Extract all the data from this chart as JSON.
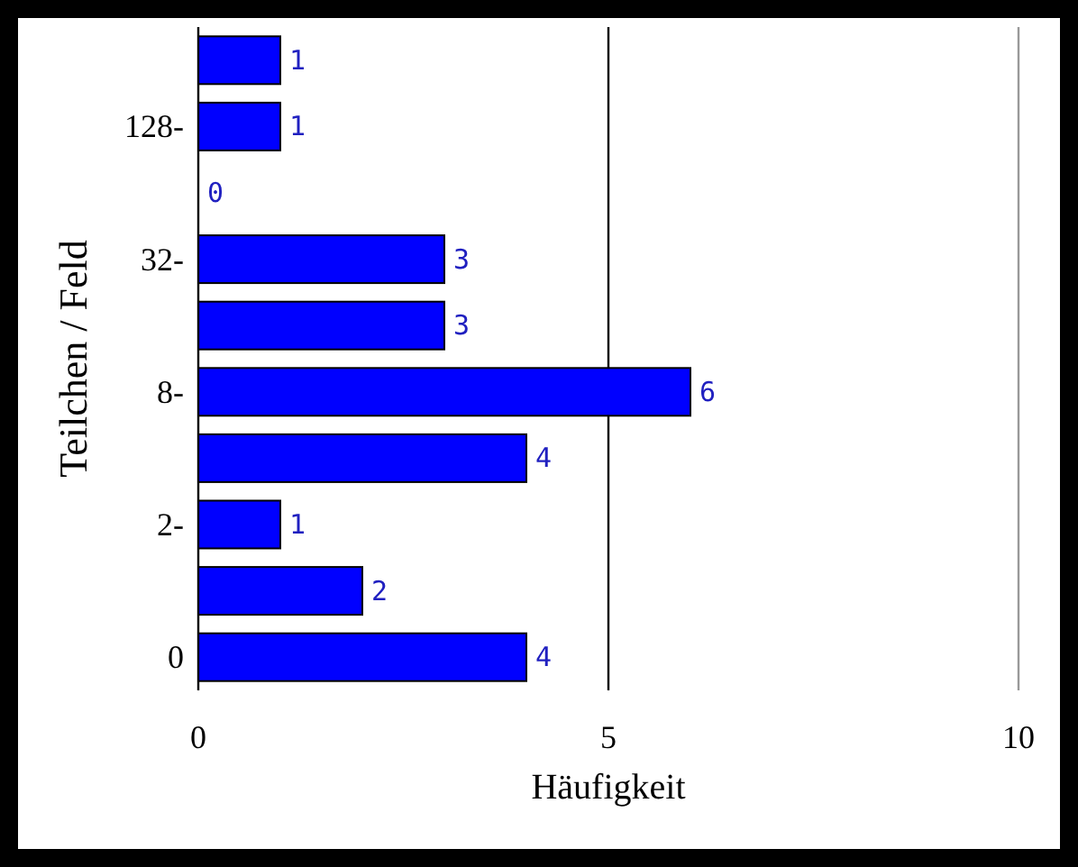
{
  "chart_data": {
    "type": "bar",
    "orientation": "horizontal",
    "xlabel": "Häufigkeit",
    "ylabel": "Teilchen / Feld",
    "categories": [
      null,
      "128-",
      null,
      "32-",
      null,
      "8-",
      null,
      "2-",
      null,
      "0"
    ],
    "values": [
      1,
      1,
      0,
      3,
      3,
      6,
      4,
      1,
      2,
      4
    ],
    "color": "#0000ff",
    "data_labels": true,
    "xlim": [
      0,
      10
    ],
    "xticks": [
      0,
      5,
      10
    ],
    "grid": "x"
  }
}
